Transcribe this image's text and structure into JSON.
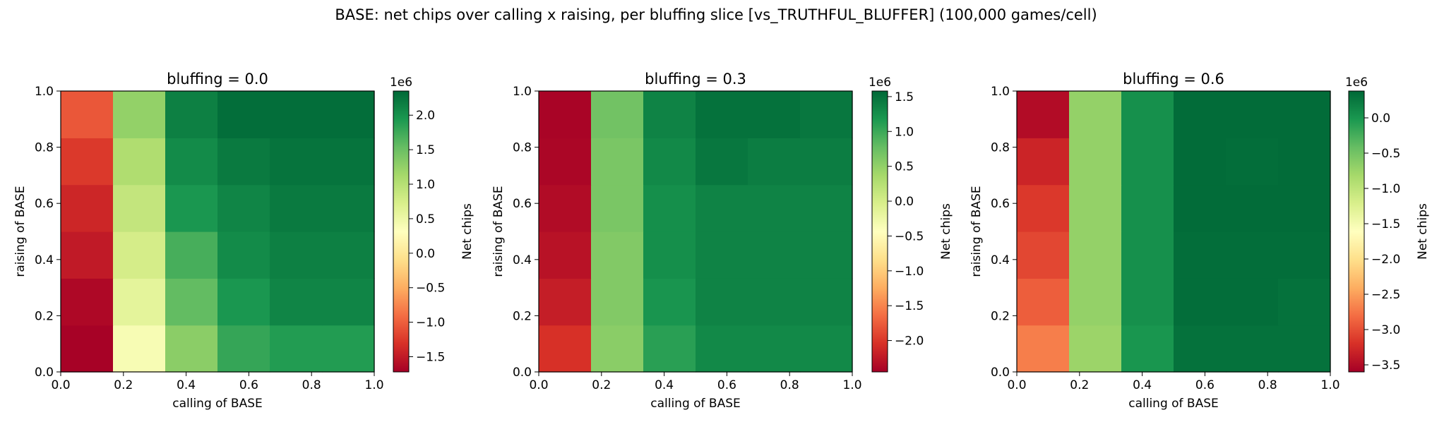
{
  "figure_title": "BASE: net chips over calling x raising, per bluffing slice  [vs_TRUTHFUL_BLUFFER]  (100,000 games/cell)",
  "chart_data": [
    {
      "type": "heatmap",
      "title": "bluffing = 0.0",
      "xlabel": "calling of BASE",
      "ylabel": "raising of BASE",
      "xlim": [
        0.0,
        1.0
      ],
      "ylim": [
        0.0,
        1.0
      ],
      "xticks": [
        "0.0",
        "0.2",
        "0.4",
        "0.6",
        "0.8",
        "1.0"
      ],
      "yticks": [
        "0.0",
        "0.2",
        "0.4",
        "0.6",
        "0.8",
        "1.0"
      ],
      "colorbar_label": "Net chips",
      "colorbar_exponent": "1e6",
      "colorbar_ticks": [
        -1.5,
        -1.0,
        -0.5,
        0.0,
        0.5,
        1.0,
        1.5,
        2.0
      ],
      "colorbar_tick_labels": [
        "−1.5",
        "−1.0",
        "−0.5",
        "0.0",
        "0.5",
        "1.0",
        "1.5",
        "2.0"
      ],
      "vmin": -1.72,
      "vmax": 2.35,
      "colormap": "RdYlGn",
      "grid": false,
      "rows_bottom_to_top": [
        [
          -1.7,
          0.4,
          1.3,
          1.8,
          1.9,
          1.9
        ],
        [
          -1.65,
          0.6,
          1.55,
          1.95,
          2.1,
          2.1
        ],
        [
          -1.5,
          0.75,
          1.7,
          2.05,
          2.15,
          2.15
        ],
        [
          -1.4,
          0.9,
          1.95,
          2.1,
          2.2,
          2.2
        ],
        [
          -1.25,
          1.05,
          2.05,
          2.2,
          2.25,
          2.25
        ],
        [
          -1.05,
          1.25,
          2.15,
          2.3,
          2.3,
          2.3
        ]
      ]
    },
    {
      "type": "heatmap",
      "title": "bluffing = 0.3",
      "xlabel": "calling of BASE",
      "ylabel": "raising of BASE",
      "xlim": [
        0.0,
        1.0
      ],
      "ylim": [
        0.0,
        1.0
      ],
      "xticks": [
        "0.0",
        "0.2",
        "0.4",
        "0.6",
        "0.8",
        "1.0"
      ],
      "yticks": [
        "0.0",
        "0.2",
        "0.4",
        "0.6",
        "0.8",
        "1.0"
      ],
      "colorbar_label": "Net chips",
      "colorbar_exponent": "1e6",
      "colorbar_ticks": [
        -2.0,
        -1.5,
        -1.0,
        -0.5,
        0.0,
        0.5,
        1.0,
        1.5
      ],
      "colorbar_tick_labels": [
        "−2.0",
        "−1.5",
        "−1.0",
        "−0.5",
        "0.0",
        "0.5",
        "1.0",
        "1.5"
      ],
      "vmin": -2.45,
      "vmax": 1.58,
      "colormap": "RdYlGn",
      "grid": false,
      "rows_bottom_to_top": [
        [
          -2.05,
          0.55,
          1.1,
          1.3,
          1.3,
          1.3
        ],
        [
          -2.2,
          0.6,
          1.2,
          1.35,
          1.35,
          1.35
        ],
        [
          -2.3,
          0.6,
          1.25,
          1.35,
          1.35,
          1.35
        ],
        [
          -2.35,
          0.65,
          1.25,
          1.35,
          1.35,
          1.35
        ],
        [
          -2.4,
          0.65,
          1.3,
          1.45,
          1.4,
          1.4
        ],
        [
          -2.42,
          0.7,
          1.35,
          1.5,
          1.5,
          1.45
        ]
      ]
    },
    {
      "type": "heatmap",
      "title": "bluffing = 0.6",
      "xlabel": "calling of BASE",
      "ylabel": "raising of BASE",
      "xlim": [
        0.0,
        1.0
      ],
      "ylim": [
        0.0,
        1.0
      ],
      "xticks": [
        "0.0",
        "0.2",
        "0.4",
        "0.6",
        "0.8",
        "1.0"
      ],
      "yticks": [
        "0.0",
        "0.2",
        "0.4",
        "0.6",
        "0.8",
        "1.0"
      ],
      "colorbar_label": "Net chips",
      "colorbar_exponent": "1e6",
      "colorbar_ticks": [
        -3.5,
        -3.0,
        -2.5,
        -2.0,
        -1.5,
        -1.0,
        -0.5,
        0.0
      ],
      "colorbar_tick_labels": [
        "−3.5",
        "−3.0",
        "−2.5",
        "−2.0",
        "−1.5",
        "−1.0",
        "−0.5",
        "0.0"
      ],
      "vmin": -3.6,
      "vmax": 0.38,
      "colormap": "RdYlGn",
      "grid": false,
      "rows_bottom_to_top": [
        [
          -2.7,
          -0.75,
          0.0,
          0.3,
          0.3,
          0.3
        ],
        [
          -2.9,
          -0.7,
          0.05,
          0.33,
          0.33,
          0.3
        ],
        [
          -3.05,
          -0.7,
          0.05,
          0.33,
          0.33,
          0.33
        ],
        [
          -3.15,
          -0.7,
          0.05,
          0.35,
          0.35,
          0.35
        ],
        [
          -3.3,
          -0.7,
          0.05,
          0.35,
          0.33,
          0.35
        ],
        [
          -3.5,
          -0.7,
          0.05,
          0.35,
          0.35,
          0.35
        ]
      ]
    }
  ]
}
